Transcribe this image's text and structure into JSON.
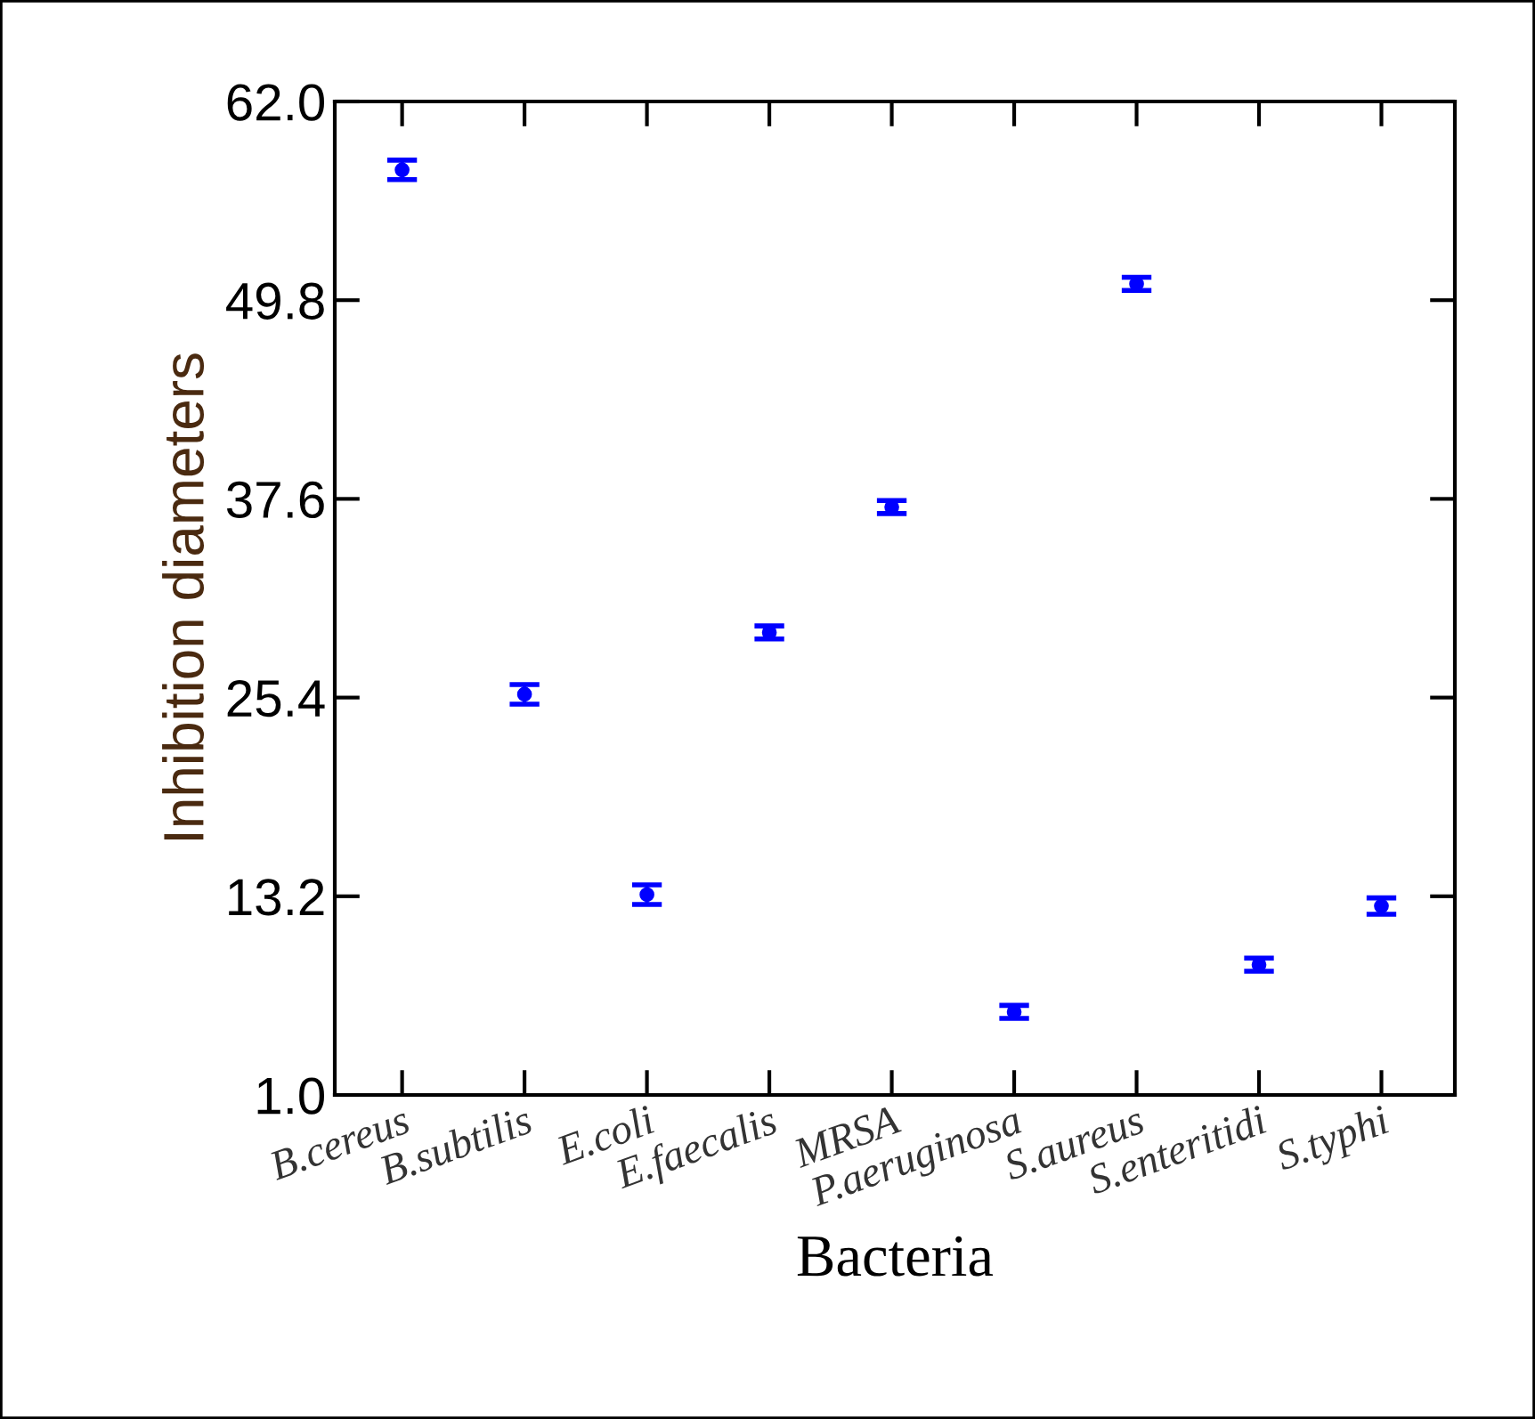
{
  "chart_data": {
    "type": "scatter",
    "xlabel": "Bacteria",
    "ylabel": "Inhibition diameters",
    "categories": [
      "B.cereus",
      "B.subtilis",
      "E.coli",
      "E.faecalis",
      "MRSA",
      "P.aeruginosa",
      "S.aureus",
      "S.enteritidi",
      "S.typhi"
    ],
    "values": [
      57.8,
      25.6,
      13.3,
      29.4,
      37.1,
      6.1,
      50.8,
      9.0,
      12.6
    ],
    "errors": [
      0.6,
      0.6,
      0.6,
      0.4,
      0.4,
      0.4,
      0.4,
      0.4,
      0.5
    ],
    "color": "#0000ff",
    "marker": "circle",
    "ylim": [
      1.0,
      62.0
    ],
    "yticks": [
      {
        "value": 1.0,
        "label": "1.0"
      },
      {
        "value": 13.2,
        "label": "13.2"
      },
      {
        "value": 25.4,
        "label": "25.4"
      },
      {
        "value": 37.6,
        "label": "37.6"
      },
      {
        "value": 49.8,
        "label": "49.8"
      },
      {
        "value": 62.0,
        "label": "62.0"
      }
    ],
    "grid": false,
    "legend": false
  }
}
